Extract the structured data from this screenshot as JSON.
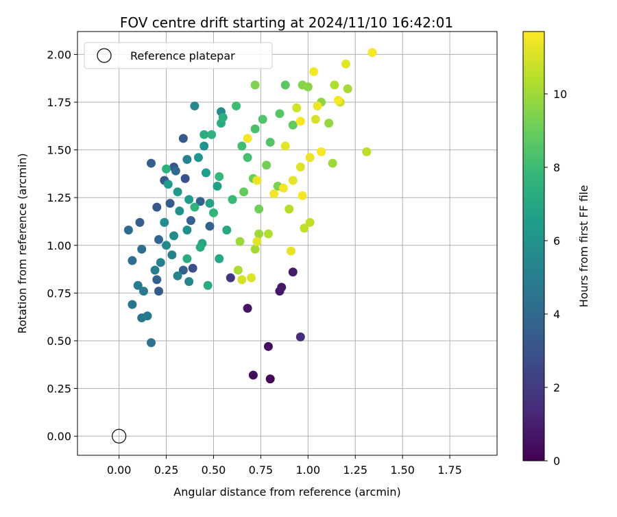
{
  "chart_data": {
    "type": "scatter",
    "title": "FOV centre drift starting at 2024/11/10 16:42:01",
    "xlabel": "Angular distance from reference (arcmin)",
    "ylabel": "Rotation from reference (arcmin)",
    "xlim": [
      -0.22,
      2.0
    ],
    "ylim": [
      -0.1,
      2.12
    ],
    "xticks": [
      "0.00",
      "0.25",
      "0.50",
      "0.75",
      "1.00",
      "1.25",
      "1.50",
      "1.75"
    ],
    "yticks": [
      "0.00",
      "0.25",
      "0.50",
      "0.75",
      "1.00",
      "1.25",
      "1.50",
      "1.75",
      "2.00"
    ],
    "grid": true,
    "legend": {
      "placement": "top-left",
      "entries": [
        "Reference platepar"
      ]
    },
    "reference_point": {
      "x": 0.0,
      "y": 0.0
    },
    "colorbar": {
      "label": "Hours from first FF file",
      "range": [
        0,
        11.7
      ],
      "ticks": [
        "0",
        "2",
        "4",
        "6",
        "8",
        "10"
      ],
      "colormap": "viridis"
    },
    "colormap_stops": [
      "#440154",
      "#482878",
      "#3e4989",
      "#31688e",
      "#26828e",
      "#1f9e89",
      "#35b779",
      "#6ece58",
      "#b5de2b",
      "#fde725"
    ],
    "points": [
      [
        0.8,
        0.3,
        0.1
      ],
      [
        0.71,
        0.32,
        0.3
      ],
      [
        0.79,
        0.47,
        0.4
      ],
      [
        0.68,
        0.67,
        0.6
      ],
      [
        0.85,
        0.76,
        0.7
      ],
      [
        0.86,
        0.78,
        0.8
      ],
      [
        0.92,
        0.86,
        0.9
      ],
      [
        0.96,
        0.52,
        1.5
      ],
      [
        0.59,
        0.83,
        1.8
      ],
      [
        0.39,
        0.88,
        2.8
      ],
      [
        0.21,
        0.76,
        3.4
      ],
      [
        0.24,
        1.34,
        3.3
      ],
      [
        0.2,
        1.2,
        3.2
      ],
      [
        0.17,
        1.43,
        3.5
      ],
      [
        0.34,
        1.56,
        3.3
      ],
      [
        0.29,
        1.41,
        3.2
      ],
      [
        0.35,
        1.35,
        3.0
      ],
      [
        0.2,
        0.82,
        3.6
      ],
      [
        0.34,
        0.87,
        3.7
      ],
      [
        0.27,
        1.22,
        3.4
      ],
      [
        0.11,
        1.12,
        3.5
      ],
      [
        0.43,
        1.23,
        3.6
      ],
      [
        0.48,
        1.1,
        3.7
      ],
      [
        0.38,
        1.13,
        3.6
      ],
      [
        0.3,
        1.39,
        3.9
      ],
      [
        0.21,
        1.03,
        3.8
      ],
      [
        0.05,
        1.08,
        4.1
      ],
      [
        0.07,
        0.92,
        4.2
      ],
      [
        0.12,
        0.98,
        4.3
      ],
      [
        0.17,
        0.49,
        4.4
      ],
      [
        0.07,
        0.69,
        4.5
      ],
      [
        0.12,
        0.62,
        4.6
      ],
      [
        0.15,
        0.63,
        4.7
      ],
      [
        0.13,
        0.76,
        4.8
      ],
      [
        0.1,
        0.79,
        4.9
      ],
      [
        0.19,
        0.87,
        5.0
      ],
      [
        0.22,
        0.91,
        5.1
      ],
      [
        0.28,
        0.95,
        5.2
      ],
      [
        0.31,
        0.84,
        5.3
      ],
      [
        0.37,
        0.81,
        5.4
      ],
      [
        0.25,
        1.0,
        5.5
      ],
      [
        0.29,
        1.05,
        5.6
      ],
      [
        0.24,
        1.12,
        5.7
      ],
      [
        0.36,
        1.08,
        5.8
      ],
      [
        0.32,
        1.18,
        5.9
      ],
      [
        0.4,
        1.73,
        5.5
      ],
      [
        0.54,
        1.7,
        5.6
      ],
      [
        0.36,
        1.45,
        5.2
      ],
      [
        0.45,
        1.52,
        6.0
      ],
      [
        0.42,
        1.46,
        6.1
      ],
      [
        0.31,
        1.28,
        6.2
      ],
      [
        0.26,
        1.32,
        6.3
      ],
      [
        0.37,
        1.24,
        6.4
      ],
      [
        0.46,
        1.38,
        6.5
      ],
      [
        0.52,
        1.31,
        6.6
      ],
      [
        0.48,
        1.22,
        6.7
      ],
      [
        0.44,
        1.01,
        6.8
      ],
      [
        0.53,
        0.93,
        6.9
      ],
      [
        0.57,
        1.08,
        7.0
      ],
      [
        0.43,
        0.99,
        7.1
      ],
      [
        0.47,
        0.79,
        7.2
      ],
      [
        0.36,
        0.93,
        7.3
      ],
      [
        0.25,
        1.4,
        7.4
      ],
      [
        0.54,
        1.64,
        7.2
      ],
      [
        0.55,
        1.67,
        7.4
      ],
      [
        0.49,
        1.58,
        7.5
      ],
      [
        0.45,
        1.58,
        7.3
      ],
      [
        0.4,
        1.2,
        7.6
      ],
      [
        0.5,
        1.17,
        7.7
      ],
      [
        0.53,
        1.36,
        7.8
      ],
      [
        0.6,
        1.24,
        7.9
      ],
      [
        0.62,
        1.73,
        8.0
      ],
      [
        0.65,
        1.52,
        8.1
      ],
      [
        0.68,
        1.46,
        8.2
      ],
      [
        0.72,
        1.61,
        8.3
      ],
      [
        0.76,
        1.66,
        8.4
      ],
      [
        0.8,
        1.54,
        8.5
      ],
      [
        0.85,
        1.69,
        8.6
      ],
      [
        0.88,
        1.84,
        8.7
      ],
      [
        0.92,
        1.63,
        8.8
      ],
      [
        0.66,
        1.28,
        8.9
      ],
      [
        0.71,
        1.35,
        9.0
      ],
      [
        0.74,
        1.19,
        9.1
      ],
      [
        0.78,
        1.42,
        9.2
      ],
      [
        0.84,
        1.31,
        9.3
      ],
      [
        0.72,
        1.84,
        9.4
      ],
      [
        0.97,
        1.84,
        9.5
      ],
      [
        1.0,
        1.83,
        9.6
      ],
      [
        1.07,
        1.75,
        9.7
      ],
      [
        1.11,
        1.64,
        9.8
      ],
      [
        0.64,
        1.02,
        9.9
      ],
      [
        0.74,
        1.06,
        10.0
      ],
      [
        0.72,
        0.98,
        10.1
      ],
      [
        0.63,
        0.87,
        10.2
      ],
      [
        0.79,
        1.06,
        10.3
      ],
      [
        0.9,
        1.19,
        10.4
      ],
      [
        0.98,
        1.09,
        10.5
      ],
      [
        1.01,
        1.12,
        10.6
      ],
      [
        1.13,
        1.43,
        9.9
      ],
      [
        1.31,
        1.49,
        10.5
      ],
      [
        1.21,
        1.82,
        10.1
      ],
      [
        1.14,
        1.84,
        10.3
      ],
      [
        1.17,
        1.75,
        10.7
      ],
      [
        0.94,
        1.72,
        10.9
      ],
      [
        1.04,
        1.66,
        11.0
      ],
      [
        0.96,
        1.41,
        11.1
      ],
      [
        0.88,
        1.52,
        11.2
      ],
      [
        0.92,
        1.34,
        11.3
      ],
      [
        1.01,
        1.46,
        11.4
      ],
      [
        0.82,
        1.27,
        11.5
      ],
      [
        1.2,
        1.95,
        11.2
      ],
      [
        1.34,
        2.01,
        11.6
      ],
      [
        1.03,
        1.91,
        11.5
      ],
      [
        1.05,
        1.73,
        11.4
      ],
      [
        1.07,
        1.49,
        11.6
      ],
      [
        0.65,
        0.82,
        11.0
      ],
      [
        0.7,
        0.83,
        11.1
      ],
      [
        0.73,
        1.02,
        11.2
      ],
      [
        0.91,
        0.97,
        11.3
      ],
      [
        0.97,
        1.26,
        11.5
      ],
      [
        0.68,
        1.56,
        11.6
      ],
      [
        0.73,
        1.34,
        11.4
      ],
      [
        1.16,
        1.76,
        11.6
      ],
      [
        0.87,
        1.3,
        11.5
      ],
      [
        0.96,
        1.65,
        11.6
      ]
    ]
  }
}
